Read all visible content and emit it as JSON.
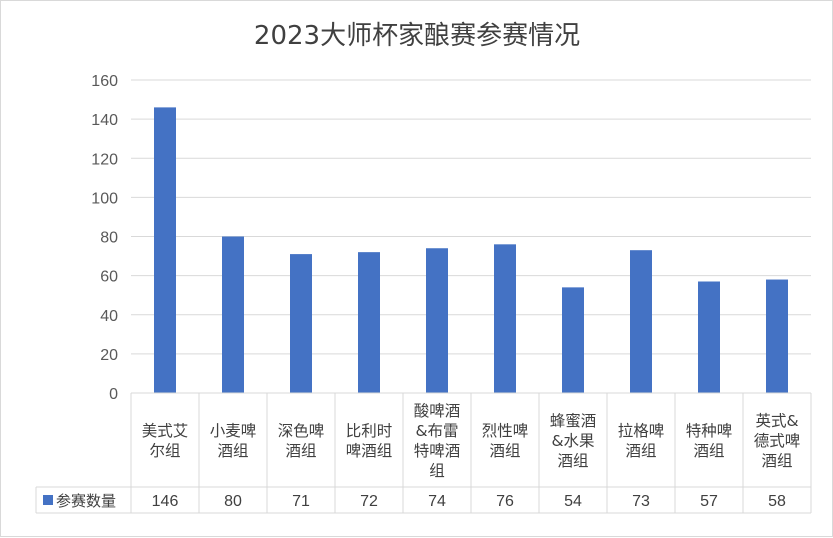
{
  "chart_data": {
    "type": "bar",
    "title": "2023大师杯家酿赛参赛情况",
    "categories": [
      [
        "美式艾",
        "尔组"
      ],
      [
        "小麦啤",
        "酒组"
      ],
      [
        "深色啤",
        "酒组"
      ],
      [
        "比利时",
        "啤酒组"
      ],
      [
        "酸啤酒",
        "&布雷",
        "特啤酒",
        "组"
      ],
      [
        "烈性啤",
        "酒组"
      ],
      [
        "蜂蜜酒",
        "&水果",
        "酒组"
      ],
      [
        "拉格啤",
        "酒组"
      ],
      [
        "特种啤",
        "酒组"
      ],
      [
        "英式&",
        "德式啤",
        "酒组"
      ]
    ],
    "series": [
      {
        "name": "参赛数量",
        "values": [
          146,
          80,
          71,
          72,
          74,
          76,
          54,
          73,
          57,
          58
        ],
        "color": "#4472c4"
      }
    ],
    "ylim": [
      0,
      160
    ],
    "yticks": [
      0,
      20,
      40,
      60,
      80,
      100,
      120,
      140,
      160
    ],
    "grid": true,
    "legend": "data-table",
    "xlabel": "",
    "ylabel": ""
  }
}
